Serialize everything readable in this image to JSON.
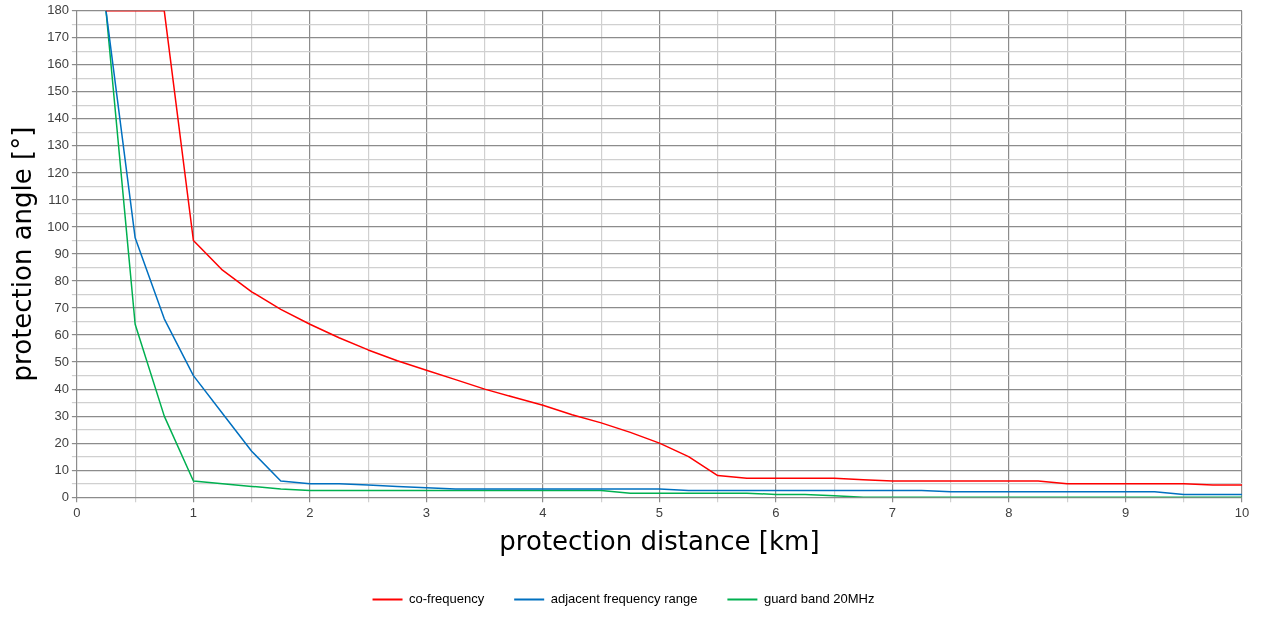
{
  "chart_data": {
    "type": "line",
    "xlabel": "protection distance [km]",
    "ylabel": "protection angle [°]",
    "x": [
      0.25,
      0.5,
      0.75,
      1,
      1.25,
      1.5,
      1.75,
      2,
      2.25,
      2.5,
      2.75,
      3,
      3.25,
      3.5,
      3.75,
      4,
      4.25,
      4.5,
      4.75,
      5,
      5.25,
      5.5,
      5.75,
      6,
      6.25,
      6.5,
      6.75,
      7,
      7.25,
      7.5,
      7.75,
      8,
      8.25,
      8.5,
      8.75,
      9,
      9.25,
      9.5,
      9.75,
      10
    ],
    "series": [
      {
        "name": "co-frequency",
        "color": "#ff0000",
        "values": [
          180,
          180,
          180,
          95,
          84,
          76,
          69.5,
          64,
          59,
          54.5,
          50.5,
          47,
          43.5,
          40,
          37,
          34,
          30.5,
          27.5,
          24,
          20,
          15,
          8,
          7,
          7,
          7,
          7,
          6.5,
          6,
          6,
          6,
          6,
          6,
          6,
          5,
          5,
          5,
          5,
          5,
          4.5,
          4.5
        ]
      },
      {
        "name": "adjacent frequency range",
        "color": "#0070c0",
        "values": [
          180,
          96,
          66,
          45,
          31,
          17,
          6,
          5,
          5,
          4.5,
          4,
          3.5,
          3,
          3,
          3,
          3,
          3,
          3,
          3,
          3,
          2.5,
          2.5,
          2.5,
          2.5,
          2.5,
          2.5,
          2.5,
          2.5,
          2.5,
          2,
          2,
          2,
          2,
          2,
          2,
          2,
          2,
          1,
          1,
          1
        ]
      },
      {
        "name": "guard band 20MHz",
        "color": "#00b050",
        "values": [
          180,
          64,
          30,
          6,
          5,
          4,
          3,
          2.5,
          2.5,
          2.5,
          2.5,
          2.5,
          2.5,
          2.5,
          2.5,
          2.5,
          2.5,
          2.5,
          1.5,
          1.5,
          1.5,
          1.5,
          1.5,
          1,
          1,
          0.5,
          0,
          0,
          0,
          0,
          0,
          0,
          0,
          0,
          0,
          0,
          0,
          0,
          0,
          0
        ]
      }
    ],
    "xlim": [
      0,
      10
    ],
    "xticks": [
      0,
      {
        "value": 0.5,
        "label": null
      },
      1,
      {
        "value": 1.5,
        "label": null
      },
      2,
      {
        "value": 2.5,
        "label": null
      },
      3,
      {
        "value": 3.5,
        "label": null
      },
      4,
      {
        "value": 4.5,
        "label": null
      },
      5,
      {
        "value": 5.5,
        "label": null
      },
      6,
      {
        "value": 6.5,
        "label": null
      },
      7,
      {
        "value": 7.5,
        "label": null
      },
      8,
      {
        "value": 8.5,
        "label": null
      },
      9,
      {
        "value": 9.5,
        "label": null
      },
      10
    ],
    "ylim": [
      0,
      180
    ],
    "yticks": [
      0,
      {
        "value": 5,
        "label": null
      },
      10,
      {
        "value": 15,
        "label": null
      },
      20,
      {
        "value": 25,
        "label": null
      },
      30,
      {
        "value": 35,
        "label": null
      },
      40,
      {
        "value": 45,
        "label": null
      },
      50,
      {
        "value": 55,
        "label": null
      },
      60,
      {
        "value": 65,
        "label": null
      },
      70,
      {
        "value": 75,
        "label": null
      },
      80,
      {
        "value": 85,
        "label": null
      },
      90,
      {
        "value": 95,
        "label": null
      },
      100,
      {
        "value": 105,
        "label": null
      },
      110,
      {
        "value": 115,
        "label": null
      },
      120,
      {
        "value": 125,
        "label": null
      },
      130,
      {
        "value": 135,
        "label": null
      },
      140,
      {
        "value": 145,
        "label": null
      },
      150,
      {
        "value": 155,
        "label": null
      },
      160,
      {
        "value": 165,
        "label": null
      },
      170,
      {
        "value": 175,
        "label": null
      },
      180
    ],
    "grid": true,
    "legend": "bottom",
    "marker": "none",
    "line_style": "solid"
  }
}
